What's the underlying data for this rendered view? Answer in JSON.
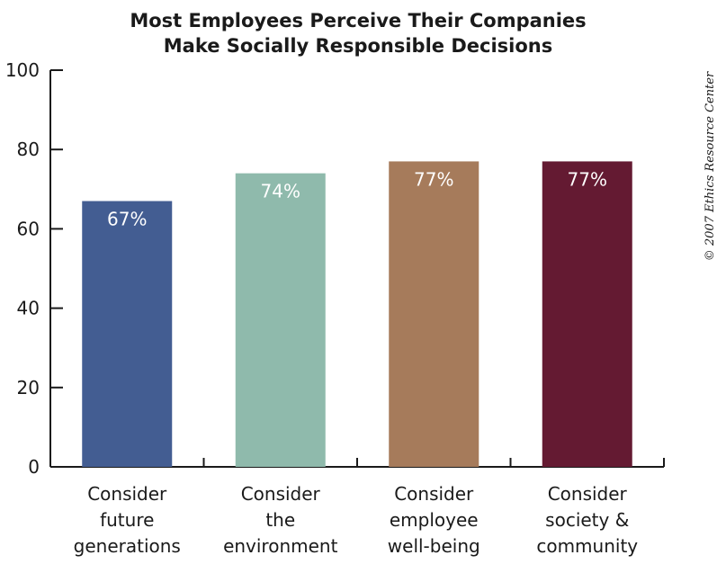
{
  "chart_data": {
    "type": "bar",
    "title": [
      "Most Employees Perceive Their Companies",
      "Make Socially Responsible Decisions"
    ],
    "categories": [
      [
        "Consider",
        "future",
        "generations"
      ],
      [
        "Consider",
        "the",
        "environment"
      ],
      [
        "Consider",
        "employee",
        "well-being"
      ],
      [
        "Consider",
        "society &",
        "community"
      ]
    ],
    "values": [
      67,
      74,
      77,
      77
    ],
    "data_labels": [
      "67%",
      "74%",
      "77%",
      "77%"
    ],
    "colors": [
      "#435d92",
      "#8fbaac",
      "#a67b5b",
      "#641a32"
    ],
    "ylim": [
      0,
      100
    ],
    "yticks": [
      0,
      20,
      40,
      60,
      80,
      100
    ],
    "grid": false,
    "legend": "none"
  },
  "credit": "© 2007 Ethics Resource Center"
}
